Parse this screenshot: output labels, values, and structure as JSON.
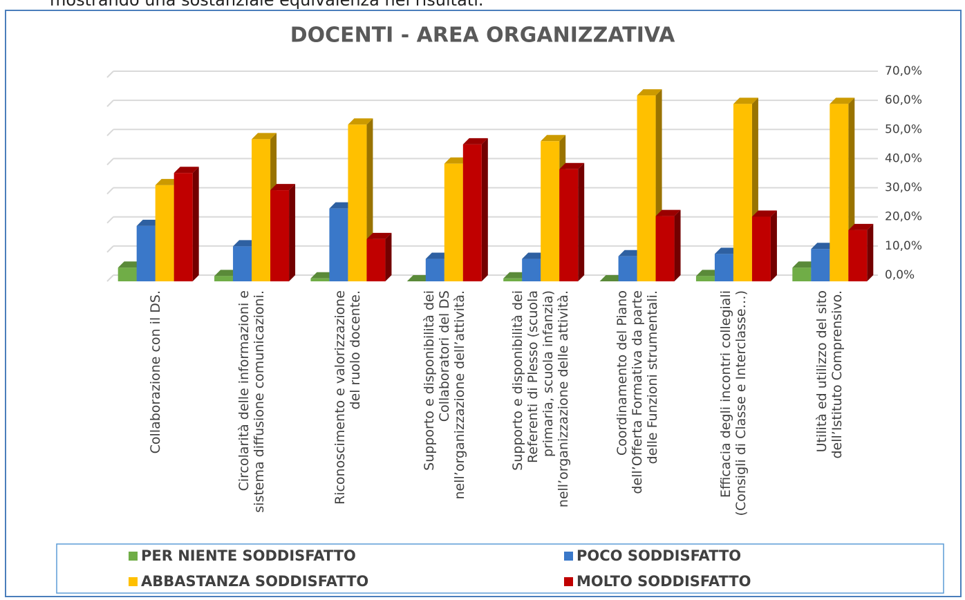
{
  "caption": "mostrando una sostanziale equivalenza nei risultati.",
  "chart_data": {
    "type": "bar3d",
    "title": "DOCENTI - AREA ORGANIZZATIVA",
    "categories": [
      "Collaborazione con il DS.",
      "Circolarità delle informazioni e sistema diffusione comunicazioni.",
      "Riconoscimento e valorizzazione del ruolo docente.",
      "Supporto e disponibilità dei Collaboratori del DS nell’organizzazione dell’attività.",
      "Supporto e disponibilità dei Referenti di Plesso (scuola primaria, scuola infanzia) nell’organizzazione delle attività.",
      "Coordinamento del Piano dell’Offerta Formativa da parte delle Funzioni strumentali.",
      "Efficacia degli incontri collegiali (Consigli di Classe e Interclasse…)",
      "Utilità ed utilizzo del sito dell’Istituto Comprensivo."
    ],
    "series": [
      {
        "name": "PER NIENTE SODDISFATTO",
        "color": "#70ad47",
        "values": [
          4.7,
          1.8,
          1.0,
          0,
          1.0,
          0,
          1.8,
          4.7
        ]
      },
      {
        "name": "POCO SODDISFATTO",
        "color": "#3a78c9",
        "values": [
          19.0,
          12.0,
          25.0,
          7.7,
          7.7,
          8.6,
          9.4,
          11.1
        ]
      },
      {
        "name": "ABBASTANZA SODDISFATTO",
        "color": "#ffc000",
        "values": [
          33.0,
          48.8,
          53.8,
          40.4,
          48.1,
          63.8,
          60.9,
          60.9
        ]
      },
      {
        "name": "MOLTO SODDISFATTO",
        "color": "#c00000",
        "values": [
          37.2,
          31.3,
          14.5,
          47.0,
          38.5,
          22.4,
          22.2,
          17.6
        ]
      }
    ],
    "ylim": [
      0,
      70
    ],
    "yticks": [
      {
        "value": 0,
        "label": "0,0%"
      },
      {
        "value": 10,
        "label": "10,0%"
      },
      {
        "value": 20,
        "label": "20,0%"
      },
      {
        "value": 30,
        "label": "30,0%"
      },
      {
        "value": 40,
        "label": "40,0%"
      },
      {
        "value": 50,
        "label": "50,0%"
      },
      {
        "value": 60,
        "label": "60,0%"
      },
      {
        "value": 70,
        "label": "70,0%"
      }
    ],
    "grid": true,
    "legend": "bottom"
  }
}
